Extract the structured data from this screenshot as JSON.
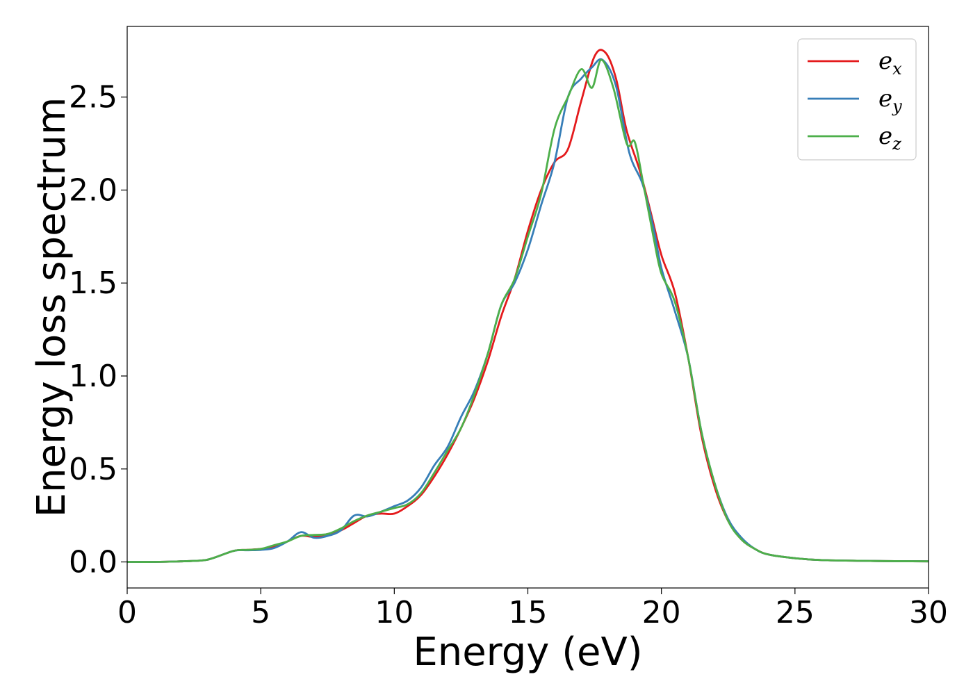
{
  "chart_data": {
    "type": "line",
    "xlabel": "Energy (eV)",
    "ylabel": "Energy loss spectrum",
    "xlim": [
      0,
      30
    ],
    "ylim": [
      -0.14,
      2.88
    ],
    "xticks": [
      0,
      5,
      10,
      15,
      20,
      25,
      30
    ],
    "xtick_labels": [
      "0",
      "5",
      "10",
      "15",
      "20",
      "25",
      "30"
    ],
    "yticks": [
      0.0,
      0.5,
      1.0,
      1.5,
      2.0,
      2.5
    ],
    "ytick_labels": [
      "0.0",
      "0.5",
      "1.0",
      "1.5",
      "2.0",
      "2.5"
    ],
    "grid": false,
    "legend_position": "top-right",
    "series": [
      {
        "name": "e_x",
        "legend_base": "e",
        "legend_sub": "x",
        "color": "#e41a1c",
        "points": [
          [
            0,
            0
          ],
          [
            1,
            0
          ],
          [
            2,
            0.003
          ],
          [
            2.8,
            0.008
          ],
          [
            3.2,
            0.02
          ],
          [
            4,
            0.06
          ],
          [
            4.5,
            0.065
          ],
          [
            5,
            0.07
          ],
          [
            5.5,
            0.08
          ],
          [
            6,
            0.11
          ],
          [
            6.5,
            0.14
          ],
          [
            7,
            0.135
          ],
          [
            7.5,
            0.15
          ],
          [
            8,
            0.17
          ],
          [
            8.5,
            0.21
          ],
          [
            9,
            0.25
          ],
          [
            9.5,
            0.26
          ],
          [
            10,
            0.26
          ],
          [
            10.5,
            0.3
          ],
          [
            11,
            0.36
          ],
          [
            11.5,
            0.46
          ],
          [
            12,
            0.58
          ],
          [
            12.5,
            0.72
          ],
          [
            13,
            0.88
          ],
          [
            13.5,
            1.08
          ],
          [
            14,
            1.32
          ],
          [
            14.5,
            1.52
          ],
          [
            15,
            1.78
          ],
          [
            15.5,
            2.0
          ],
          [
            16,
            2.15
          ],
          [
            16.5,
            2.22
          ],
          [
            17,
            2.48
          ],
          [
            17.5,
            2.72
          ],
          [
            17.9,
            2.74
          ],
          [
            18.3,
            2.6
          ],
          [
            18.7,
            2.32
          ],
          [
            19.2,
            2.1
          ],
          [
            19.6,
            1.88
          ],
          [
            20,
            1.65
          ],
          [
            20.5,
            1.45
          ],
          [
            21,
            1.1
          ],
          [
            21.5,
            0.68
          ],
          [
            22,
            0.4
          ],
          [
            22.5,
            0.22
          ],
          [
            23,
            0.12
          ],
          [
            23.5,
            0.07
          ],
          [
            24,
            0.04
          ],
          [
            25,
            0.02
          ],
          [
            26,
            0.01
          ],
          [
            28,
            0.005
          ],
          [
            30,
            0.003
          ]
        ]
      },
      {
        "name": "e_y",
        "legend_base": "e",
        "legend_sub": "y",
        "color": "#377eb8",
        "points": [
          [
            0,
            0
          ],
          [
            1,
            0
          ],
          [
            2,
            0.003
          ],
          [
            2.8,
            0.008
          ],
          [
            3.2,
            0.02
          ],
          [
            4,
            0.06
          ],
          [
            4.5,
            0.063
          ],
          [
            5,
            0.065
          ],
          [
            5.5,
            0.075
          ],
          [
            6,
            0.11
          ],
          [
            6.5,
            0.16
          ],
          [
            7,
            0.13
          ],
          [
            7.5,
            0.14
          ],
          [
            8,
            0.17
          ],
          [
            8.5,
            0.25
          ],
          [
            9,
            0.245
          ],
          [
            9.5,
            0.27
          ],
          [
            10,
            0.3
          ],
          [
            10.5,
            0.33
          ],
          [
            11,
            0.4
          ],
          [
            11.5,
            0.52
          ],
          [
            12,
            0.62
          ],
          [
            12.5,
            0.78
          ],
          [
            13,
            0.92
          ],
          [
            13.5,
            1.12
          ],
          [
            14,
            1.38
          ],
          [
            14.5,
            1.5
          ],
          [
            15,
            1.68
          ],
          [
            15.5,
            1.92
          ],
          [
            16,
            2.15
          ],
          [
            16.5,
            2.5
          ],
          [
            17,
            2.6
          ],
          [
            17.4,
            2.66
          ],
          [
            17.8,
            2.7
          ],
          [
            18.3,
            2.56
          ],
          [
            18.8,
            2.2
          ],
          [
            19.3,
            2.03
          ],
          [
            19.7,
            1.8
          ],
          [
            20,
            1.58
          ],
          [
            20.5,
            1.35
          ],
          [
            21,
            1.1
          ],
          [
            21.5,
            0.7
          ],
          [
            22,
            0.42
          ],
          [
            22.5,
            0.23
          ],
          [
            23,
            0.13
          ],
          [
            23.5,
            0.07
          ],
          [
            24,
            0.04
          ],
          [
            25,
            0.02
          ],
          [
            26,
            0.01
          ],
          [
            28,
            0.005
          ],
          [
            30,
            0.003
          ]
        ]
      },
      {
        "name": "e_z",
        "legend_base": "e",
        "legend_sub": "z",
        "color": "#4daf4a",
        "points": [
          [
            0,
            0
          ],
          [
            1,
            0
          ],
          [
            2,
            0.003
          ],
          [
            2.8,
            0.008
          ],
          [
            3.2,
            0.02
          ],
          [
            4,
            0.06
          ],
          [
            4.5,
            0.065
          ],
          [
            5,
            0.07
          ],
          [
            5.5,
            0.09
          ],
          [
            6,
            0.11
          ],
          [
            6.5,
            0.14
          ],
          [
            7,
            0.145
          ],
          [
            7.5,
            0.15
          ],
          [
            8,
            0.18
          ],
          [
            8.5,
            0.22
          ],
          [
            9,
            0.25
          ],
          [
            9.5,
            0.27
          ],
          [
            10,
            0.29
          ],
          [
            10.5,
            0.31
          ],
          [
            11,
            0.37
          ],
          [
            11.5,
            0.48
          ],
          [
            12,
            0.6
          ],
          [
            12.5,
            0.72
          ],
          [
            13,
            0.9
          ],
          [
            13.5,
            1.12
          ],
          [
            14,
            1.38
          ],
          [
            14.5,
            1.52
          ],
          [
            15,
            1.75
          ],
          [
            15.5,
            1.98
          ],
          [
            16,
            2.33
          ],
          [
            16.5,
            2.5
          ],
          [
            17,
            2.65
          ],
          [
            17.4,
            2.55
          ],
          [
            17.75,
            2.7
          ],
          [
            18.2,
            2.55
          ],
          [
            18.7,
            2.25
          ],
          [
            19,
            2.26
          ],
          [
            19.3,
            2.05
          ],
          [
            19.7,
            1.75
          ],
          [
            20,
            1.55
          ],
          [
            20.5,
            1.4
          ],
          [
            21,
            1.1
          ],
          [
            21.5,
            0.7
          ],
          [
            22,
            0.42
          ],
          [
            22.5,
            0.22
          ],
          [
            23,
            0.12
          ],
          [
            23.5,
            0.07
          ],
          [
            24,
            0.04
          ],
          [
            25,
            0.02
          ],
          [
            26,
            0.01
          ],
          [
            28,
            0.005
          ],
          [
            30,
            0.003
          ]
        ]
      }
    ]
  }
}
